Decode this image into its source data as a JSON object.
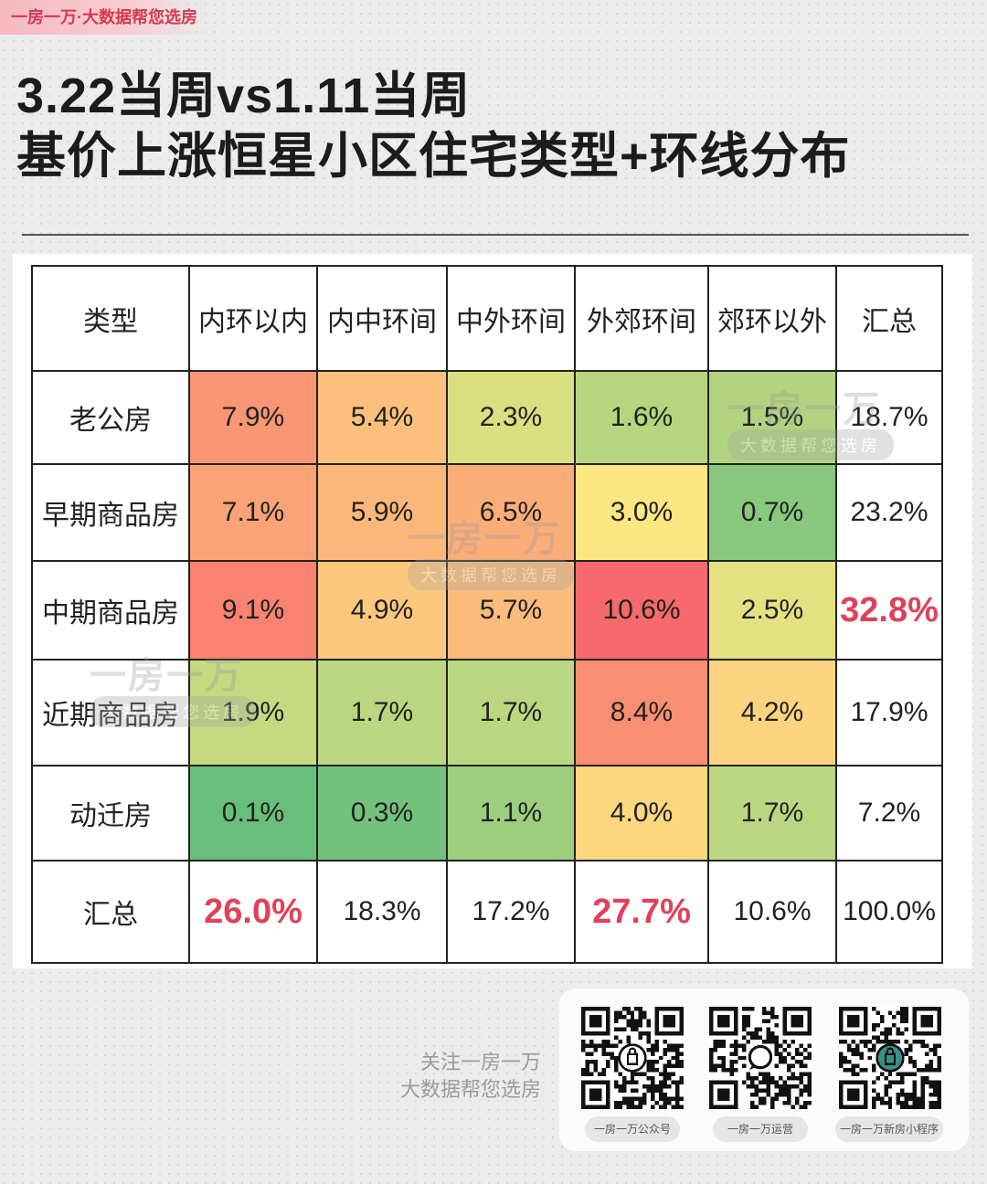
{
  "brand_tag": "一房一万·大数据帮您选房",
  "title_line1": "3.22当周vs1.11当周",
  "title_line2": "基价上涨恒星小区住宅类型+环线分布",
  "chart_data": {
    "type": "heatmap",
    "title": "3.22当周vs1.11当周 基价上涨恒星小区住宅类型+环线分布",
    "corner_label": "类型",
    "columns": [
      "内环以内",
      "内中环间",
      "中外环间",
      "外郊环间",
      "郊环以外"
    ],
    "total_label": "汇总",
    "rows": [
      {
        "name": "老公房",
        "values": [
          7.9,
          5.4,
          2.3,
          1.6,
          1.5
        ],
        "total": 18.7
      },
      {
        "name": "早期商品房",
        "values": [
          7.1,
          5.9,
          6.5,
          3.0,
          0.7
        ],
        "total": 23.2
      },
      {
        "name": "中期商品房",
        "values": [
          9.1,
          4.9,
          5.7,
          10.6,
          2.5
        ],
        "total": 32.8
      },
      {
        "name": "近期商品房",
        "values": [
          1.9,
          1.7,
          1.7,
          8.4,
          4.2
        ],
        "total": 17.9
      },
      {
        "name": "动迁房",
        "values": [
          0.1,
          0.3,
          1.1,
          4.0,
          1.7
        ],
        "total": 7.2
      }
    ],
    "column_totals": [
      26.0,
      18.3,
      17.2,
      27.7,
      10.6
    ],
    "grand_total": 100.0,
    "unit": "%",
    "highlighted_totals": [
      "中期商品房",
      "内环以内",
      "外郊环间"
    ],
    "highlight_color": "#e0415a",
    "color_scale": "green (low) → yellow → red (high)"
  },
  "watermark": {
    "text": "一房一万",
    "sub": "大数据帮您选房"
  },
  "footer": {
    "follow_line1": "关注一房一万",
    "follow_line2": "大数据帮您选房",
    "qr_codes": [
      {
        "label": "一房一万公众号",
        "icon": "lock-icon"
      },
      {
        "label": "一房一万运营",
        "icon": "chat-icon"
      },
      {
        "label": "一房一万新房小程序",
        "icon": "lock-icon"
      }
    ]
  }
}
